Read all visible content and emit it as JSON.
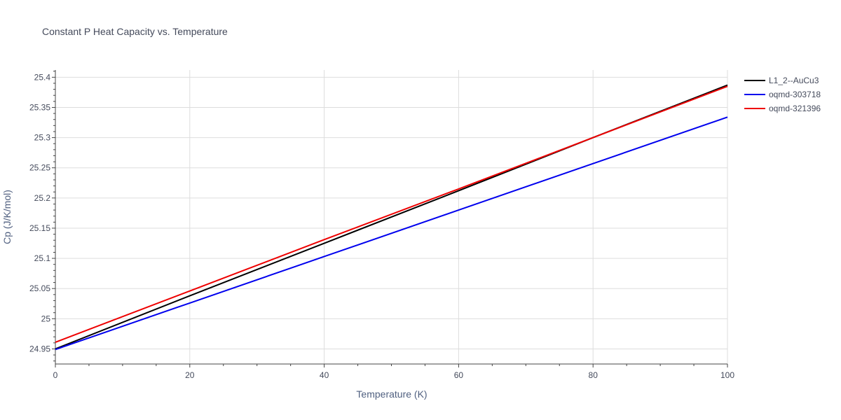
{
  "chart_data": {
    "type": "line",
    "title": "Constant P Heat Capacity vs. Temperature",
    "xlabel": "Temperature (K)",
    "ylabel": "Cp (J/K/mol)",
    "xlim": [
      0,
      100
    ],
    "ylim": [
      24.925,
      25.412
    ],
    "x_ticks": [
      0,
      20,
      40,
      60,
      80,
      100
    ],
    "x_tick_labels": [
      "0",
      "20",
      "40",
      "60",
      "80",
      "100"
    ],
    "y_ticks": [
      24.95,
      25,
      25.05,
      25.1,
      25.15,
      25.2,
      25.25,
      25.3,
      25.35,
      25.4
    ],
    "y_tick_labels": [
      "24.95",
      "25",
      "25.05",
      "25.1",
      "25.15",
      "25.2",
      "25.25",
      "25.3",
      "25.35",
      "25.4"
    ],
    "grid": true,
    "legend_position": "right",
    "x": [
      0,
      20,
      40,
      60,
      80,
      100
    ],
    "series": [
      {
        "name": "L1_2--AuCu3",
        "color": "#000000",
        "values": [
          24.95,
          25.038,
          25.125,
          25.212,
          25.3,
          25.387
        ]
      },
      {
        "name": "oqmd-303718",
        "color": "#0000ee",
        "values": [
          24.949,
          25.026,
          25.103,
          25.18,
          25.257,
          25.334
        ]
      },
      {
        "name": "oqmd-321396",
        "color": "#ee0000",
        "values": [
          24.961,
          25.046,
          25.131,
          25.215,
          25.3,
          25.385
        ]
      }
    ]
  }
}
